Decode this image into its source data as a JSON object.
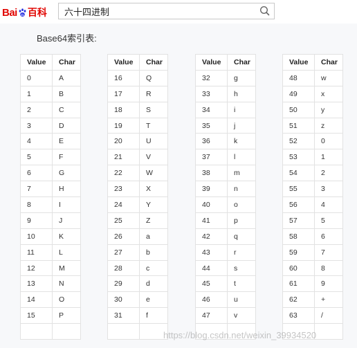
{
  "brand": {
    "text_left": "Bai",
    "text_right": "百科"
  },
  "search": {
    "value": "六十四进制",
    "button": "search-icon"
  },
  "heading": "Base64索引表:",
  "table_headers": {
    "value": "Value",
    "char": "Char"
  },
  "tables": [
    [
      [
        "0",
        "A"
      ],
      [
        "1",
        "B"
      ],
      [
        "2",
        "C"
      ],
      [
        "3",
        "D"
      ],
      [
        "4",
        "E"
      ],
      [
        "5",
        "F"
      ],
      [
        "6",
        "G"
      ],
      [
        "7",
        "H"
      ],
      [
        "8",
        "I"
      ],
      [
        "9",
        "J"
      ],
      [
        "10",
        "K"
      ],
      [
        "11",
        "L"
      ],
      [
        "12",
        "M"
      ],
      [
        "13",
        "N"
      ],
      [
        "14",
        "O"
      ],
      [
        "15",
        "P"
      ],
      [
        "",
        ""
      ]
    ],
    [
      [
        "16",
        "Q"
      ],
      [
        "17",
        "R"
      ],
      [
        "18",
        "S"
      ],
      [
        "19",
        "T"
      ],
      [
        "20",
        "U"
      ],
      [
        "21",
        "V"
      ],
      [
        "22",
        "W"
      ],
      [
        "23",
        "X"
      ],
      [
        "24",
        "Y"
      ],
      [
        "25",
        "Z"
      ],
      [
        "26",
        "a"
      ],
      [
        "27",
        "b"
      ],
      [
        "28",
        "c"
      ],
      [
        "29",
        "d"
      ],
      [
        "30",
        "e"
      ],
      [
        "31",
        "f"
      ],
      [
        "",
        ""
      ]
    ],
    [
      [
        "32",
        "g"
      ],
      [
        "33",
        "h"
      ],
      [
        "34",
        "i"
      ],
      [
        "35",
        "j"
      ],
      [
        "36",
        "k"
      ],
      [
        "37",
        "l"
      ],
      [
        "38",
        "m"
      ],
      [
        "39",
        "n"
      ],
      [
        "40",
        "o"
      ],
      [
        "41",
        "p"
      ],
      [
        "42",
        "q"
      ],
      [
        "43",
        "r"
      ],
      [
        "44",
        "s"
      ],
      [
        "45",
        "t"
      ],
      [
        "46",
        "u"
      ],
      [
        "47",
        "v"
      ],
      [
        "",
        ""
      ]
    ],
    [
      [
        "48",
        "w"
      ],
      [
        "49",
        "x"
      ],
      [
        "50",
        "y"
      ],
      [
        "51",
        "z"
      ],
      [
        "52",
        "0"
      ],
      [
        "53",
        "1"
      ],
      [
        "54",
        "2"
      ],
      [
        "55",
        "3"
      ],
      [
        "56",
        "4"
      ],
      [
        "57",
        "5"
      ],
      [
        "58",
        "6"
      ],
      [
        "59",
        "7"
      ],
      [
        "60",
        "8"
      ],
      [
        "61",
        "9"
      ],
      [
        "62",
        "+"
      ],
      [
        "63",
        "/"
      ],
      [
        "",
        ""
      ]
    ]
  ],
  "watermark": "https://blog.csdn.net/weixin_39934520",
  "colors": {
    "brand_red": "#e10602",
    "border": "#e2e2e2",
    "page_bg": "#f7f8fa"
  }
}
